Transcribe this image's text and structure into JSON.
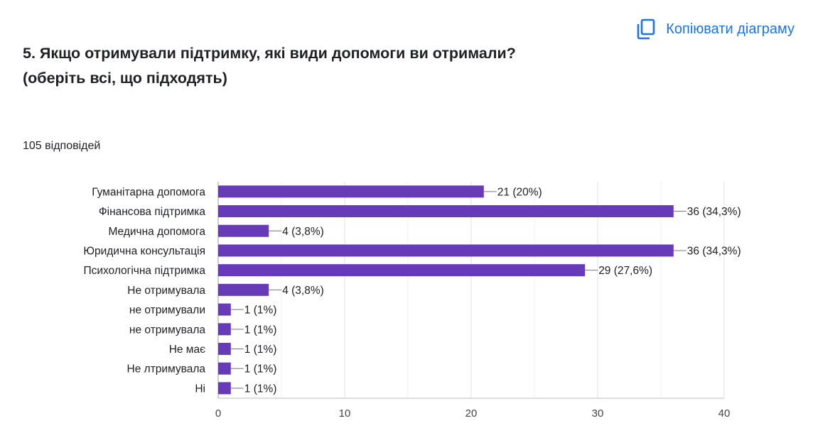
{
  "header": {
    "copy_label": "Копіювати діаграму",
    "copy_icon": "copy-icon"
  },
  "question": {
    "line1": "5. Якщо отримували підтримку, які види допомоги ви отримали?",
    "line2": "(оберіть всі, що підходять)"
  },
  "responses_count": "105 відповідей",
  "colors": {
    "bar": "#673ab7",
    "accent": "#1a73e8",
    "grid": "#e0e0e0"
  },
  "chart_data": {
    "type": "bar",
    "orientation": "horizontal",
    "categories": [
      "Гуманітарна допомога",
      "Фінансова підтримка",
      "Медична допомога",
      "Юридична консультація",
      "Психологічна підтримка",
      "Не отримувала",
      "не отримували",
      "не отримувала",
      "Не має",
      "Не лтримувала",
      "Ні"
    ],
    "values": [
      21,
      36,
      4,
      36,
      29,
      4,
      1,
      1,
      1,
      1,
      1
    ],
    "data_labels": [
      "21 (20%)",
      "36 (34,3%)",
      "4 (3,8%)",
      "36 (34,3%)",
      "29 (27,6%)",
      "4 (3,8%)",
      "1 (1%)",
      "1 (1%)",
      "1 (1%)",
      "1 (1%)",
      "1 (1%)"
    ],
    "xlim": [
      0,
      40
    ],
    "xticks": [
      0,
      10,
      20,
      30,
      40
    ],
    "grid": true
  }
}
